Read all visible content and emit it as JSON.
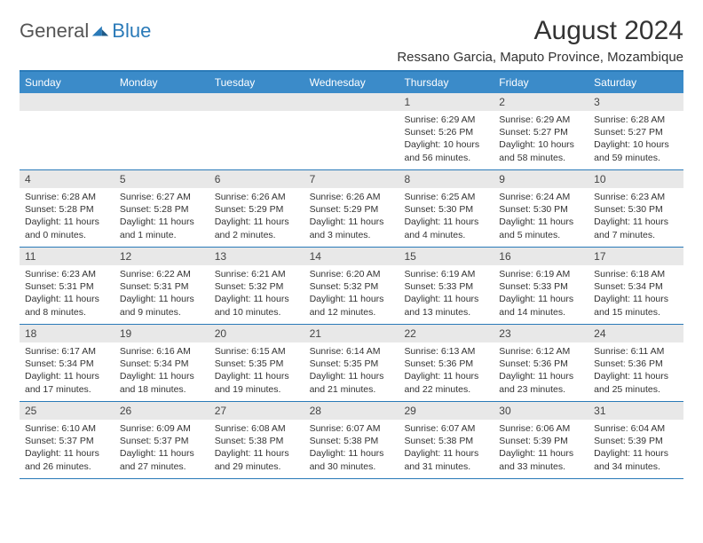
{
  "logo": {
    "general": "General",
    "blue": "Blue"
  },
  "title": "August 2024",
  "location": "Ressano Garcia, Maputo Province, Mozambique",
  "colors": {
    "header_bar": "#3b8bc9",
    "border": "#2a7ab8",
    "date_bar": "#e8e8e8",
    "text": "#333333",
    "logo_gray": "#555555",
    "logo_blue": "#2a7ab8"
  },
  "day_names": [
    "Sunday",
    "Monday",
    "Tuesday",
    "Wednesday",
    "Thursday",
    "Friday",
    "Saturday"
  ],
  "weeks": [
    [
      null,
      null,
      null,
      null,
      {
        "d": "1",
        "sr": "6:29 AM",
        "ss": "5:26 PM",
        "dl": "10 hours and 56 minutes."
      },
      {
        "d": "2",
        "sr": "6:29 AM",
        "ss": "5:27 PM",
        "dl": "10 hours and 58 minutes."
      },
      {
        "d": "3",
        "sr": "6:28 AM",
        "ss": "5:27 PM",
        "dl": "10 hours and 59 minutes."
      }
    ],
    [
      {
        "d": "4",
        "sr": "6:28 AM",
        "ss": "5:28 PM",
        "dl": "11 hours and 0 minutes."
      },
      {
        "d": "5",
        "sr": "6:27 AM",
        "ss": "5:28 PM",
        "dl": "11 hours and 1 minute."
      },
      {
        "d": "6",
        "sr": "6:26 AM",
        "ss": "5:29 PM",
        "dl": "11 hours and 2 minutes."
      },
      {
        "d": "7",
        "sr": "6:26 AM",
        "ss": "5:29 PM",
        "dl": "11 hours and 3 minutes."
      },
      {
        "d": "8",
        "sr": "6:25 AM",
        "ss": "5:30 PM",
        "dl": "11 hours and 4 minutes."
      },
      {
        "d": "9",
        "sr": "6:24 AM",
        "ss": "5:30 PM",
        "dl": "11 hours and 5 minutes."
      },
      {
        "d": "10",
        "sr": "6:23 AM",
        "ss": "5:30 PM",
        "dl": "11 hours and 7 minutes."
      }
    ],
    [
      {
        "d": "11",
        "sr": "6:23 AM",
        "ss": "5:31 PM",
        "dl": "11 hours and 8 minutes."
      },
      {
        "d": "12",
        "sr": "6:22 AM",
        "ss": "5:31 PM",
        "dl": "11 hours and 9 minutes."
      },
      {
        "d": "13",
        "sr": "6:21 AM",
        "ss": "5:32 PM",
        "dl": "11 hours and 10 minutes."
      },
      {
        "d": "14",
        "sr": "6:20 AM",
        "ss": "5:32 PM",
        "dl": "11 hours and 12 minutes."
      },
      {
        "d": "15",
        "sr": "6:19 AM",
        "ss": "5:33 PM",
        "dl": "11 hours and 13 minutes."
      },
      {
        "d": "16",
        "sr": "6:19 AM",
        "ss": "5:33 PM",
        "dl": "11 hours and 14 minutes."
      },
      {
        "d": "17",
        "sr": "6:18 AM",
        "ss": "5:34 PM",
        "dl": "11 hours and 15 minutes."
      }
    ],
    [
      {
        "d": "18",
        "sr": "6:17 AM",
        "ss": "5:34 PM",
        "dl": "11 hours and 17 minutes."
      },
      {
        "d": "19",
        "sr": "6:16 AM",
        "ss": "5:34 PM",
        "dl": "11 hours and 18 minutes."
      },
      {
        "d": "20",
        "sr": "6:15 AM",
        "ss": "5:35 PM",
        "dl": "11 hours and 19 minutes."
      },
      {
        "d": "21",
        "sr": "6:14 AM",
        "ss": "5:35 PM",
        "dl": "11 hours and 21 minutes."
      },
      {
        "d": "22",
        "sr": "6:13 AM",
        "ss": "5:36 PM",
        "dl": "11 hours and 22 minutes."
      },
      {
        "d": "23",
        "sr": "6:12 AM",
        "ss": "5:36 PM",
        "dl": "11 hours and 23 minutes."
      },
      {
        "d": "24",
        "sr": "6:11 AM",
        "ss": "5:36 PM",
        "dl": "11 hours and 25 minutes."
      }
    ],
    [
      {
        "d": "25",
        "sr": "6:10 AM",
        "ss": "5:37 PM",
        "dl": "11 hours and 26 minutes."
      },
      {
        "d": "26",
        "sr": "6:09 AM",
        "ss": "5:37 PM",
        "dl": "11 hours and 27 minutes."
      },
      {
        "d": "27",
        "sr": "6:08 AM",
        "ss": "5:38 PM",
        "dl": "11 hours and 29 minutes."
      },
      {
        "d": "28",
        "sr": "6:07 AM",
        "ss": "5:38 PM",
        "dl": "11 hours and 30 minutes."
      },
      {
        "d": "29",
        "sr": "6:07 AM",
        "ss": "5:38 PM",
        "dl": "11 hours and 31 minutes."
      },
      {
        "d": "30",
        "sr": "6:06 AM",
        "ss": "5:39 PM",
        "dl": "11 hours and 33 minutes."
      },
      {
        "d": "31",
        "sr": "6:04 AM",
        "ss": "5:39 PM",
        "dl": "11 hours and 34 minutes."
      }
    ]
  ],
  "labels": {
    "sunrise": "Sunrise:",
    "sunset": "Sunset:",
    "daylight": "Daylight:"
  }
}
